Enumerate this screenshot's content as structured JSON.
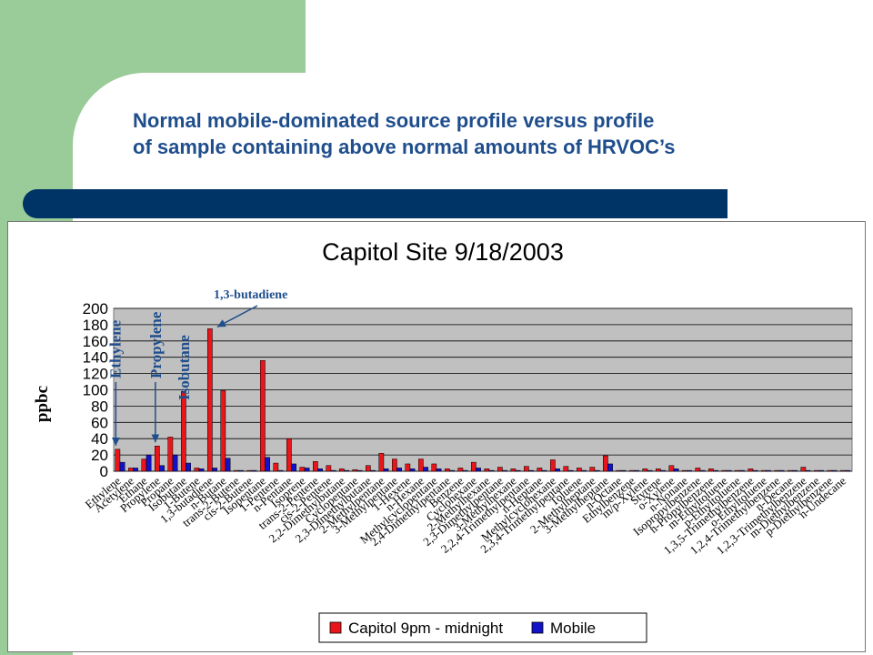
{
  "slide": {
    "title_line1": "Normal mobile-dominated source profile versus profile",
    "title_line2": "of sample containing above normal amounts of HRVOC’s"
  },
  "colors": {
    "series1": "#e8151b",
    "series2": "#1212c8",
    "plot_bg": "#c0c0c0",
    "title_text": "#1f4e8c",
    "annotation": "#1f4e8c",
    "navy_bar": "#003366",
    "green_deco": "#99cc99"
  },
  "chart_data": {
    "type": "bar",
    "title": "Capitol Site 9/18/2003",
    "ylabel": "ppbc",
    "xlabel": "",
    "ylim": [
      0,
      200
    ],
    "y_ticks": [
      0,
      20,
      40,
      60,
      80,
      100,
      120,
      140,
      160,
      180,
      200
    ],
    "grid": true,
    "legend_position": "bottom",
    "categories": [
      "Ethylene",
      "Acetylene",
      "Ethane",
      "Propylene",
      "Propane",
      "Isobutane",
      "1-Butene",
      "1,3-butadiene",
      "n-Butane",
      "trans-2-Butene",
      "cis-2-Butene",
      "Isopentane",
      "1-Pentene",
      "n-Pentane",
      "Isoprene",
      "trans-2-Pentene",
      "cis-2-Pentene",
      "2,2-Dimethylbutane",
      "Cyclopentane",
      "2,3-Dimethylbutane",
      "2-Methylpentane",
      "3-Methylpentane",
      "1-Hexene",
      "n-Hexane",
      "Methylcyclopentane",
      "2,4-Dimethylpentane",
      "Benzene",
      "Cyclohexane",
      "2-Methylhexane",
      "2,3-Dimethylpentane",
      "3-Methylhexane",
      "2,2,4-Trimethylpentane",
      "n-Heptane",
      "Methylcyclohexane",
      "2,3,4-Trimethylpentane",
      "Toluene",
      "2-Methylheptane",
      "3-Methylheptane",
      "n-Octane",
      "Ethylbenzene",
      "m/p-Xylene",
      "Styrene",
      "o-Xylene",
      "n-Nonane",
      "Isopropylbenzene",
      "n-Propylbenzene",
      "m-Ethyltoluene",
      "p-Ethyltoluene",
      "1,3,5-Trimethylbenzene",
      "o-Ethyltoluene",
      "1,2,4-Trimethylbenzene",
      "n-Decane",
      "1,2,3-Trimethylbenzene",
      "m-Diethylbenzene",
      "p-Diethylbenzene",
      "n-Undecane"
    ],
    "tick_labels_shown": [
      "Ethylene",
      "Acetylene",
      "Ethane",
      "Propylene",
      "Propane",
      "Isobutane",
      "1-Butene",
      "1,3-butadiene",
      "n-Butane",
      "trans-2-Butene",
      "cis-2-Butene",
      "Isopentane",
      "1-Pentene",
      "n-Pentane",
      "Isoprene",
      "trans-2-Pentene",
      "cis-2-Pentene",
      "2,2-Dimethylbutane",
      "Cyclopentane",
      "2,3-Dimethylbutane",
      "2-Methylpentane",
      "3-Methylpentane",
      "1-Hexene",
      "n-Hexane",
      "Methylcyclopentane",
      "2,4-Dimethylpentane",
      "Benzene",
      "Cyclohexane",
      "2-Methylhexane",
      "2,3-Dimethylpentane",
      "3-Methylhexane",
      "2,2,4-Trimethylpentane",
      "n-Heptane",
      "Methylcyclohexane",
      "2,3,4-Trimethylpentane",
      "Toluene",
      "2-Methylheptane",
      "3-Methylheptane",
      "n-Octane",
      "Ethylbenzene",
      "m/p-Xylene",
      "Styrene",
      "o-Xylene",
      "n-Nonane",
      "Isopropylbenzene",
      "n-Propylbenzene",
      "m-Ethyltoluene",
      "p-Ethyltoluene",
      "1,3,5-Trimethylbenzene",
      "o-Ethyltoluene",
      "1,2,4-Trimethylbenzene",
      "n-Decane",
      "1,2,3-Trimethylbenzene",
      "m-Diethylbenzene",
      "p-Diethylbenzene",
      "n-Undecane"
    ],
    "series": [
      {
        "name": "Capitol 9pm - midnight",
        "values": [
          27,
          4,
          15,
          31,
          42,
          98,
          4,
          175,
          99,
          1,
          1,
          136,
          10,
          40,
          5,
          12,
          7,
          3,
          2,
          7,
          22,
          15,
          9,
          15,
          9,
          3,
          4,
          11,
          3,
          5,
          3,
          6,
          4,
          14,
          6,
          4,
          5,
          19,
          1,
          1,
          3,
          3,
          7,
          1,
          4,
          3,
          1,
          1,
          3,
          1,
          1,
          1,
          5,
          1,
          1,
          1
        ]
      },
      {
        "name": "Mobile",
        "values": [
          11,
          4,
          20,
          7,
          20,
          10,
          3,
          4,
          16,
          1,
          1,
          17,
          1,
          9,
          4,
          3,
          1,
          1,
          1,
          1,
          3,
          4,
          3,
          5,
          3,
          1,
          1,
          4,
          1,
          1,
          1,
          1,
          1,
          3,
          1,
          1,
          1,
          9,
          1,
          1,
          1,
          1,
          3,
          1,
          1,
          1,
          1,
          1,
          1,
          1,
          1,
          1,
          1,
          1,
          1,
          1
        ]
      }
    ],
    "annotations": [
      {
        "text": "Ethylene",
        "target": "Ethylene"
      },
      {
        "text": "Propylene",
        "target": "Propylene"
      },
      {
        "text": "Isobutane",
        "target": "Isobutane"
      },
      {
        "text": "1,3-butadiene",
        "target": "1,3-butadiene"
      }
    ]
  }
}
